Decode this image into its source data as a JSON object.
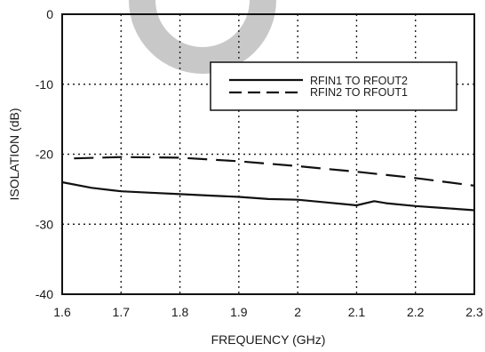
{
  "chart_data": {
    "type": "line",
    "title": "",
    "xlabel": "FREQUENCY (GHz)",
    "ylabel": "ISOLATION (dB)",
    "xlim": [
      1.6,
      2.3
    ],
    "ylim": [
      -40,
      0
    ],
    "xticks": [
      1.6,
      1.7,
      1.8,
      1.9,
      2.0,
      2.1,
      2.2,
      2.3
    ],
    "xtick_labels": [
      "1.6",
      "1.7",
      "1.8",
      "1.9",
      "2",
      "2.1",
      "2.2",
      "2.3"
    ],
    "yticks": [
      0,
      -10,
      -20,
      -30,
      -40
    ],
    "ytick_labels": [
      "0",
      "-10",
      "-20",
      "-30",
      "-40"
    ],
    "grid": true,
    "grid_style": "dotted",
    "legend_position": "top-right",
    "series": [
      {
        "name": "RFIN1 TO RFOUT2",
        "style": "solid",
        "color": "#111111",
        "x": [
          1.6,
          1.65,
          1.7,
          1.75,
          1.8,
          1.85,
          1.9,
          1.95,
          2.0,
          2.05,
          2.1,
          2.13,
          2.15,
          2.2,
          2.25,
          2.3
        ],
        "y": [
          -24.0,
          -24.8,
          -25.3,
          -25.5,
          -25.7,
          -25.9,
          -26.1,
          -26.4,
          -26.5,
          -26.9,
          -27.3,
          -26.7,
          -27.0,
          -27.4,
          -27.7,
          -28.0
        ]
      },
      {
        "name": "RFIN2 TO RFOUT1",
        "style": "dashed",
        "color": "#111111",
        "x": [
          1.62,
          1.7,
          1.8,
          1.9,
          2.0,
          2.1,
          2.2,
          2.3
        ],
        "y": [
          -20.6,
          -20.4,
          -20.5,
          -21.0,
          -21.7,
          -22.5,
          -23.4,
          -24.5
        ]
      }
    ]
  },
  "watermark": {
    "color": "#c8c8c8"
  }
}
